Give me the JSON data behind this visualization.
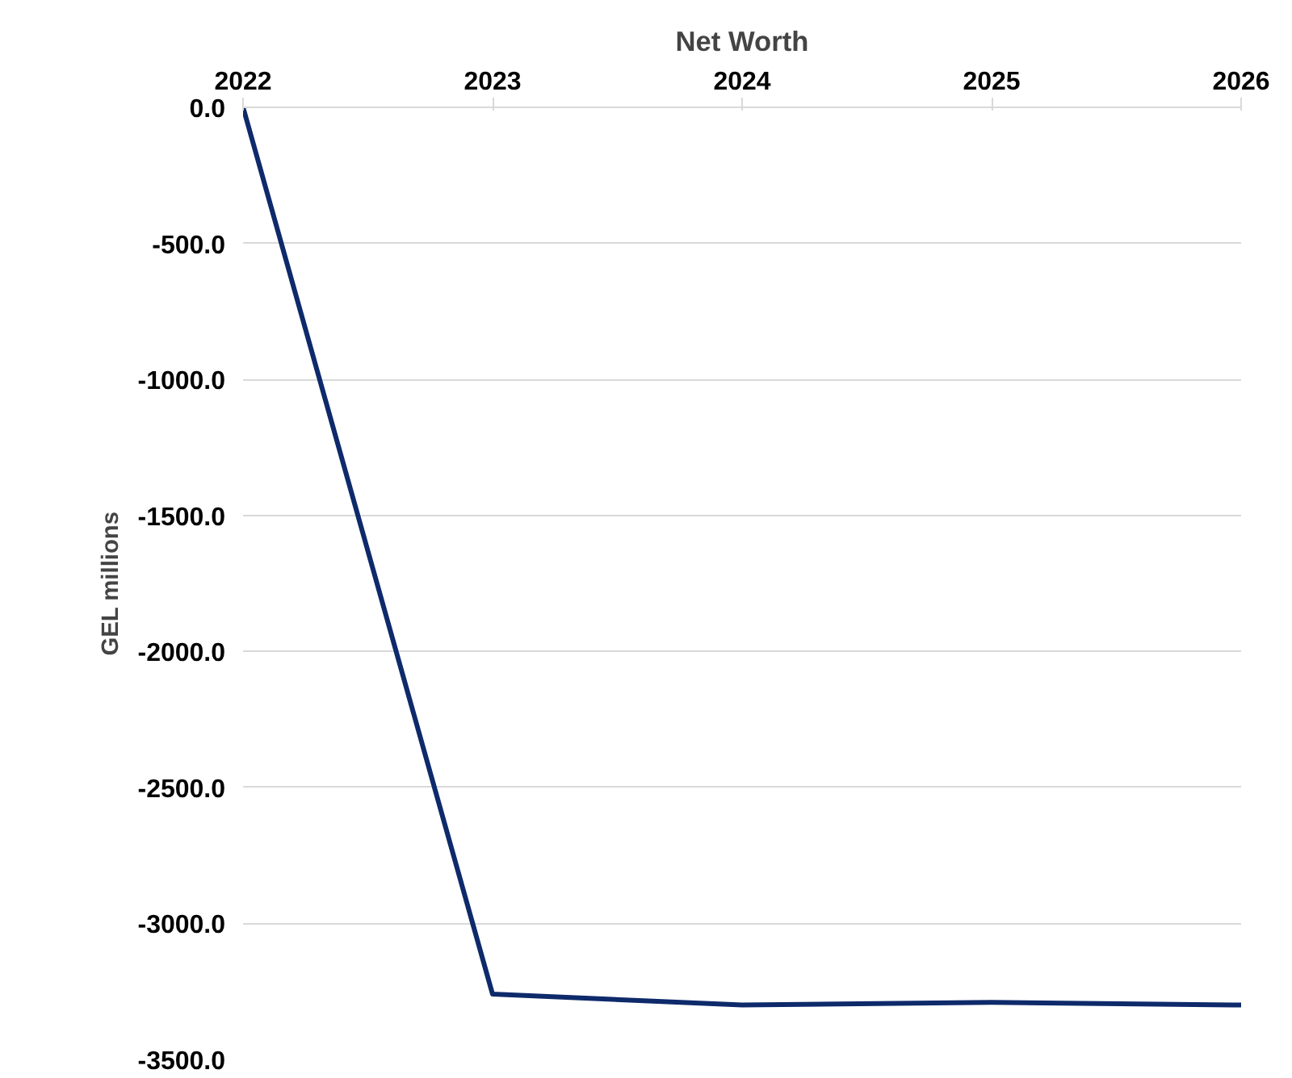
{
  "chart_data": {
    "type": "line",
    "title": "Net Worth",
    "ylabel": "GEL millions",
    "categories": [
      "2022",
      "2023",
      "2024",
      "2025",
      "2026"
    ],
    "series": [
      {
        "color": "#0e2a6b",
        "values": [
          0,
          -3260,
          -3300,
          -3290,
          -3300
        ]
      }
    ],
    "ylim": [
      -3500,
      0
    ],
    "yticks": [
      {
        "value": 0,
        "label": "0.0"
      },
      {
        "value": -500,
        "label": "-500.0"
      },
      {
        "value": -1000,
        "label": "-1000.0"
      },
      {
        "value": -1500,
        "label": "-1500.0"
      },
      {
        "value": -2000,
        "label": "-2000.0"
      },
      {
        "value": -2500,
        "label": "-2500.0"
      },
      {
        "value": -3000,
        "label": "-3000.0"
      },
      {
        "value": -3500,
        "label": "-3500.0"
      }
    ],
    "grid": "y",
    "marker": "none",
    "line_style": "solid"
  }
}
